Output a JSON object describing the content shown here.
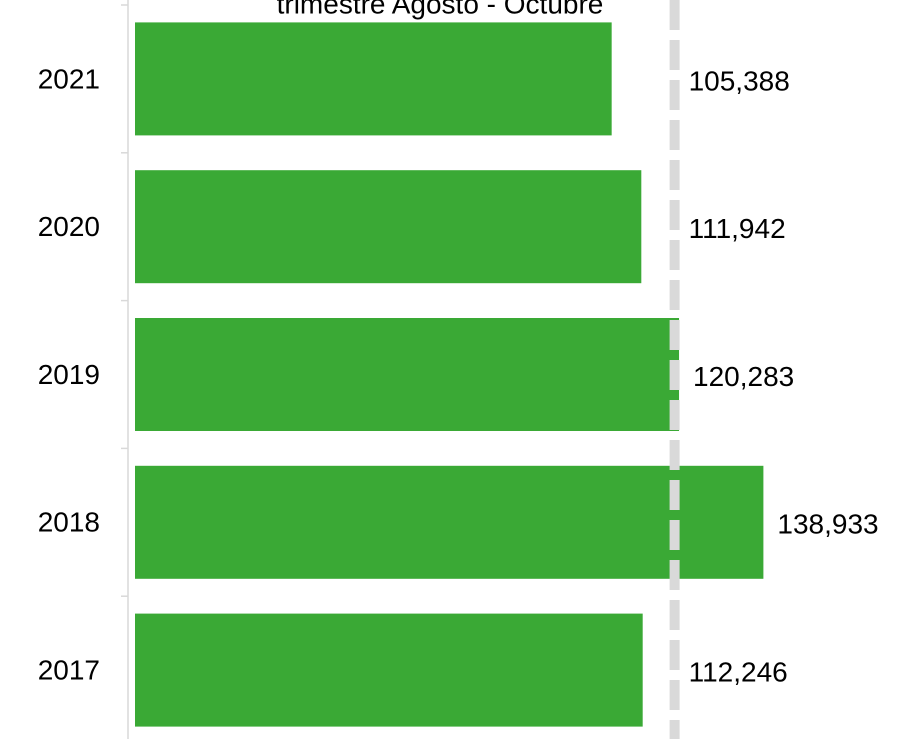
{
  "chart_data": {
    "type": "hbar",
    "title": "trimestre Agosto - Octubre",
    "categories": [
      "2021",
      "2020",
      "2019",
      "2018",
      "2017"
    ],
    "values": [
      105388,
      111942,
      120283,
      138933,
      112246
    ],
    "value_labels": [
      "105,388",
      "111,942",
      "120,283",
      "138,933",
      "112,246"
    ],
    "color": "#3aa935",
    "xlim": [
      0,
      174000
    ],
    "reference_line": 119300,
    "reference_line_color": "#d9d9d9"
  }
}
